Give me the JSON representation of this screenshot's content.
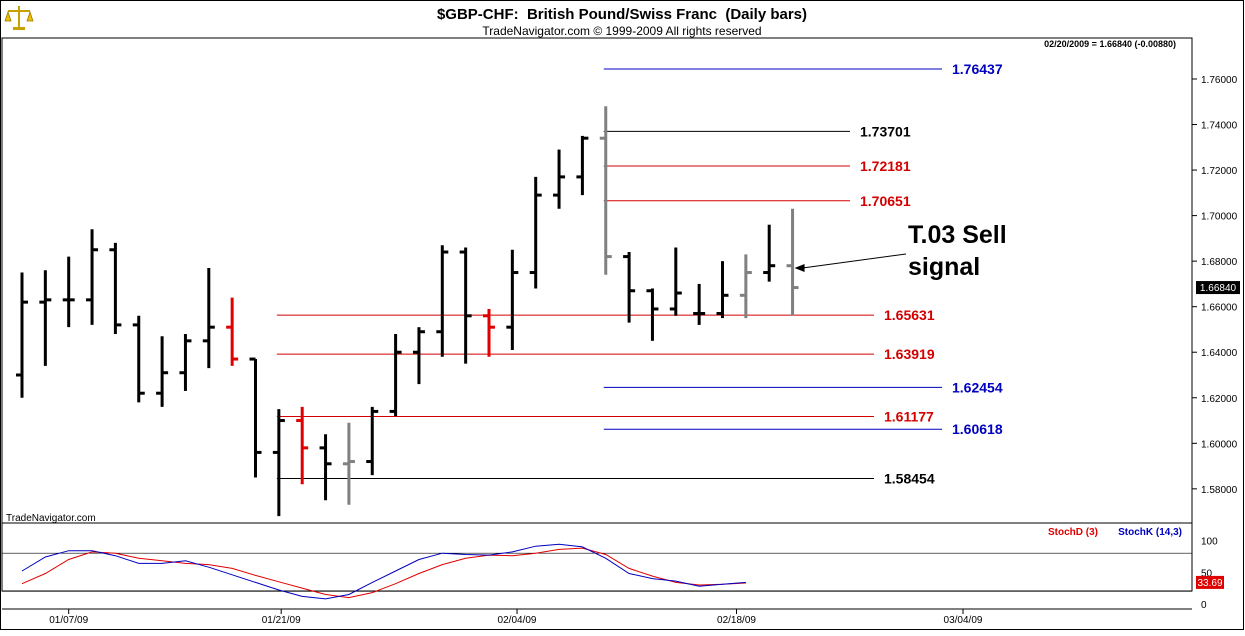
{
  "header": {
    "title": "$GBP-CHF:  British Pound/Swiss Franc  (Daily bars)",
    "subtitle": "TradeNavigator.com © 1999-2009 All rights reserved",
    "status": "02/20/2009 = 1.66840 (-0.00880)",
    "watermark": "TradeNavigator.com",
    "logo_icon": "scales-icon"
  },
  "colors": {
    "black": "#000000",
    "red": "#e00000",
    "gray": "#808080",
    "blue": "#0000c0",
    "level_red": "#d40000",
    "stochd": "#e00000",
    "stochk": "#0000c0",
    "price_tag_bg": "#000000",
    "stoch_tag_bg": "#e00000"
  },
  "chart_data": [
    {
      "type": "ohlc",
      "title": "$GBP-CHF:  British Pound/Swiss Franc  (Daily bars)",
      "ylim": [
        1.565,
        1.778
      ],
      "x_tick_labels": [
        "01/07/09",
        "01/21/09",
        "02/04/09",
        "02/18/09",
        "03/04/09"
      ],
      "y_tick_labels": [
        "1.58000",
        "1.60000",
        "1.62000",
        "1.64000",
        "1.66000",
        "1.68000",
        "1.70000",
        "1.72000",
        "1.74000",
        "1.76000"
      ],
      "y_ticks": [
        1.58,
        1.6,
        1.62,
        1.64,
        1.66,
        1.68,
        1.7,
        1.72,
        1.74,
        1.76
      ],
      "last_price_label": "1.66840",
      "last_price": 1.6684,
      "bars": [
        {
          "i": 0,
          "o": 1.63,
          "h": 1.675,
          "l": 1.62,
          "c": 1.662,
          "color": "black"
        },
        {
          "i": 1,
          "o": 1.662,
          "h": 1.676,
          "l": 1.634,
          "c": 1.663,
          "color": "black"
        },
        {
          "i": 2,
          "o": 1.663,
          "h": 1.682,
          "l": 1.651,
          "c": 1.663,
          "color": "black"
        },
        {
          "i": 3,
          "o": 1.663,
          "h": 1.694,
          "l": 1.652,
          "c": 1.685,
          "color": "black"
        },
        {
          "i": 4,
          "o": 1.685,
          "h": 1.688,
          "l": 1.648,
          "c": 1.652,
          "color": "black"
        },
        {
          "i": 5,
          "o": 1.652,
          "h": 1.656,
          "l": 1.618,
          "c": 1.622,
          "color": "black"
        },
        {
          "i": 6,
          "o": 1.622,
          "h": 1.647,
          "l": 1.616,
          "c": 1.631,
          "color": "black"
        },
        {
          "i": 7,
          "o": 1.631,
          "h": 1.648,
          "l": 1.623,
          "c": 1.645,
          "color": "black"
        },
        {
          "i": 8,
          "o": 1.645,
          "h": 1.677,
          "l": 1.633,
          "c": 1.651,
          "color": "black"
        },
        {
          "i": 9,
          "o": 1.651,
          "h": 1.664,
          "l": 1.634,
          "c": 1.637,
          "color": "red"
        },
        {
          "i": 10,
          "o": 1.637,
          "h": 1.637,
          "l": 1.585,
          "c": 1.596,
          "color": "black"
        },
        {
          "i": 11,
          "o": 1.596,
          "h": 1.615,
          "l": 1.568,
          "c": 1.61,
          "color": "black"
        },
        {
          "i": 12,
          "o": 1.61,
          "h": 1.616,
          "l": 1.582,
          "c": 1.598,
          "color": "red"
        },
        {
          "i": 13,
          "o": 1.598,
          "h": 1.604,
          "l": 1.575,
          "c": 1.591,
          "color": "black"
        },
        {
          "i": 14,
          "o": 1.591,
          "h": 1.609,
          "l": 1.573,
          "c": 1.592,
          "color": "gray"
        },
        {
          "i": 15,
          "o": 1.592,
          "h": 1.616,
          "l": 1.586,
          "c": 1.614,
          "color": "black"
        },
        {
          "i": 16,
          "o": 1.614,
          "h": 1.648,
          "l": 1.612,
          "c": 1.64,
          "color": "black"
        },
        {
          "i": 17,
          "o": 1.64,
          "h": 1.651,
          "l": 1.626,
          "c": 1.649,
          "color": "black"
        },
        {
          "i": 18,
          "o": 1.649,
          "h": 1.687,
          "l": 1.638,
          "c": 1.684,
          "color": "black"
        },
        {
          "i": 19,
          "o": 1.684,
          "h": 1.686,
          "l": 1.635,
          "c": 1.656,
          "color": "black"
        },
        {
          "i": 20,
          "o": 1.656,
          "h": 1.659,
          "l": 1.638,
          "c": 1.651,
          "color": "red"
        },
        {
          "i": 21,
          "o": 1.651,
          "h": 1.685,
          "l": 1.641,
          "c": 1.675,
          "color": "black"
        },
        {
          "i": 22,
          "o": 1.675,
          "h": 1.717,
          "l": 1.668,
          "c": 1.709,
          "color": "black"
        },
        {
          "i": 23,
          "o": 1.709,
          "h": 1.729,
          "l": 1.703,
          "c": 1.717,
          "color": "black"
        },
        {
          "i": 24,
          "o": 1.717,
          "h": 1.735,
          "l": 1.709,
          "c": 1.734,
          "color": "black"
        },
        {
          "i": 25,
          "o": 1.734,
          "h": 1.748,
          "l": 1.674,
          "c": 1.682,
          "color": "gray"
        },
        {
          "i": 26,
          "o": 1.682,
          "h": 1.684,
          "l": 1.653,
          "c": 1.667,
          "color": "black"
        },
        {
          "i": 27,
          "o": 1.667,
          "h": 1.668,
          "l": 1.645,
          "c": 1.659,
          "color": "black"
        },
        {
          "i": 28,
          "o": 1.659,
          "h": 1.686,
          "l": 1.656,
          "c": 1.666,
          "color": "black"
        },
        {
          "i": 29,
          "o": 1.657,
          "h": 1.67,
          "l": 1.652,
          "c": 1.657,
          "color": "black"
        },
        {
          "i": 30,
          "o": 1.657,
          "h": 1.68,
          "l": 1.655,
          "c": 1.665,
          "color": "black"
        },
        {
          "i": 31,
          "o": 1.665,
          "h": 1.683,
          "l": 1.655,
          "c": 1.675,
          "color": "gray"
        },
        {
          "i": 32,
          "o": 1.675,
          "h": 1.696,
          "l": 1.671,
          "c": 1.678,
          "color": "black"
        },
        {
          "i": 33,
          "o": 1.678,
          "h": 1.703,
          "l": 1.656,
          "c": 1.6684,
          "color": "gray"
        }
      ],
      "levels": [
        {
          "value": 1.76437,
          "label": "1.76437",
          "color": "blue",
          "x_start_bar": 25
        },
        {
          "value": 1.73701,
          "label": "1.73701",
          "color": "black",
          "x_start_bar": 25
        },
        {
          "value": 1.72181,
          "label": "1.72181",
          "color": "red",
          "x_start_bar": 25
        },
        {
          "value": 1.70651,
          "label": "1.70651",
          "color": "red",
          "x_start_bar": 25
        },
        {
          "value": 1.65631,
          "label": "1.65631",
          "color": "red",
          "x_start_bar": 11
        },
        {
          "value": 1.63919,
          "label": "1.63919",
          "color": "red",
          "x_start_bar": 11
        },
        {
          "value": 1.62454,
          "label": "1.62454",
          "color": "blue",
          "x_start_bar": 25
        },
        {
          "value": 1.61177,
          "label": "1.61177",
          "color": "red",
          "x_start_bar": 11
        },
        {
          "value": 1.60618,
          "label": "1.60618",
          "color": "blue",
          "x_start_bar": 25
        },
        {
          "value": 1.58454,
          "label": "1.58454",
          "color": "black",
          "x_start_bar": 11
        }
      ],
      "annotation": {
        "line1": "T.03 Sell",
        "line2": "signal",
        "arrow_target_bar": 33,
        "arrow_target_value": 1.677
      }
    },
    {
      "type": "line",
      "legend": [
        "StochD (3)",
        "StochK (14,3)"
      ],
      "ylim": [
        0,
        100
      ],
      "y_tick_labels": [
        "0",
        "50",
        "100"
      ],
      "y_ticks": [
        0,
        50,
        100
      ],
      "reference_lines": [
        20,
        80
      ],
      "last_value_label": "33.69",
      "series": [
        {
          "name": "StochD (3)",
          "color": "red",
          "values": [
            32,
            48,
            70,
            82,
            80,
            72,
            68,
            64,
            62,
            56,
            45,
            35,
            25,
            15,
            10,
            18,
            32,
            48,
            62,
            72,
            77,
            76,
            80,
            86,
            88,
            78,
            56,
            44,
            34,
            30,
            31,
            33
          ]
        },
        {
          "name": "StochK (14,3)",
          "color": "blue",
          "values": [
            52,
            74,
            84,
            84,
            76,
            64,
            64,
            68,
            58,
            46,
            34,
            22,
            12,
            8,
            15,
            34,
            52,
            70,
            80,
            78,
            77,
            82,
            91,
            94,
            90,
            72,
            48,
            40,
            36,
            28,
            31,
            34
          ]
        }
      ]
    }
  ]
}
